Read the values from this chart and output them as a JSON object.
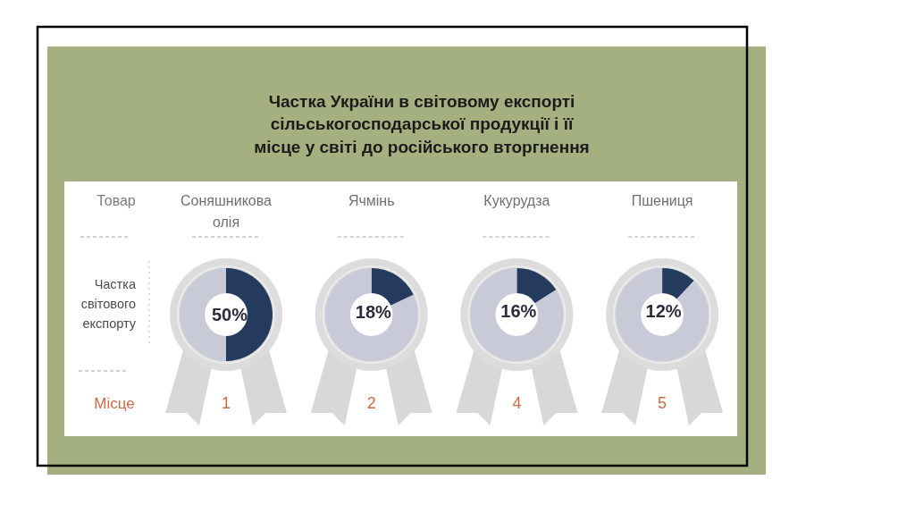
{
  "chart_data": [
    {
      "type": "other",
      "title": "Частка України в світовому експорті сільськогосподарської продукції і її місце у світі до російського вторгнення",
      "annotations": [
        "Товар",
        "Частка світового експорту",
        "Місце"
      ]
    },
    {
      "type": "donut",
      "title": "Соняшникова олія",
      "categories": [
        null,
        null
      ],
      "values": [
        50,
        50
      ],
      "colors": [
        "#243b5e",
        "#c9cad8"
      ],
      "value_labels": [
        "50%",
        null
      ],
      "annotations": [
        "1"
      ]
    },
    {
      "type": "donut",
      "title": "Ячмінь",
      "categories": [
        null,
        null
      ],
      "values": [
        18,
        82
      ],
      "colors": [
        "#243b5e",
        "#c9cad8"
      ],
      "value_labels": [
        "18%",
        null
      ],
      "annotations": [
        "2"
      ]
    },
    {
      "type": "donut",
      "title": "Кукурудза",
      "categories": [
        null,
        null
      ],
      "values": [
        16,
        84
      ],
      "colors": [
        "#243b5e",
        "#c9cad8"
      ],
      "value_labels": [
        "16%",
        null
      ],
      "annotations": [
        "4"
      ]
    },
    {
      "type": "donut",
      "title": "Пшениця",
      "categories": [
        null,
        null
      ],
      "values": [
        12,
        88
      ],
      "colors": [
        "#243b5e",
        "#c9cad8"
      ],
      "value_labels": [
        "12%",
        null
      ],
      "annotations": [
        "5"
      ]
    }
  ]
}
